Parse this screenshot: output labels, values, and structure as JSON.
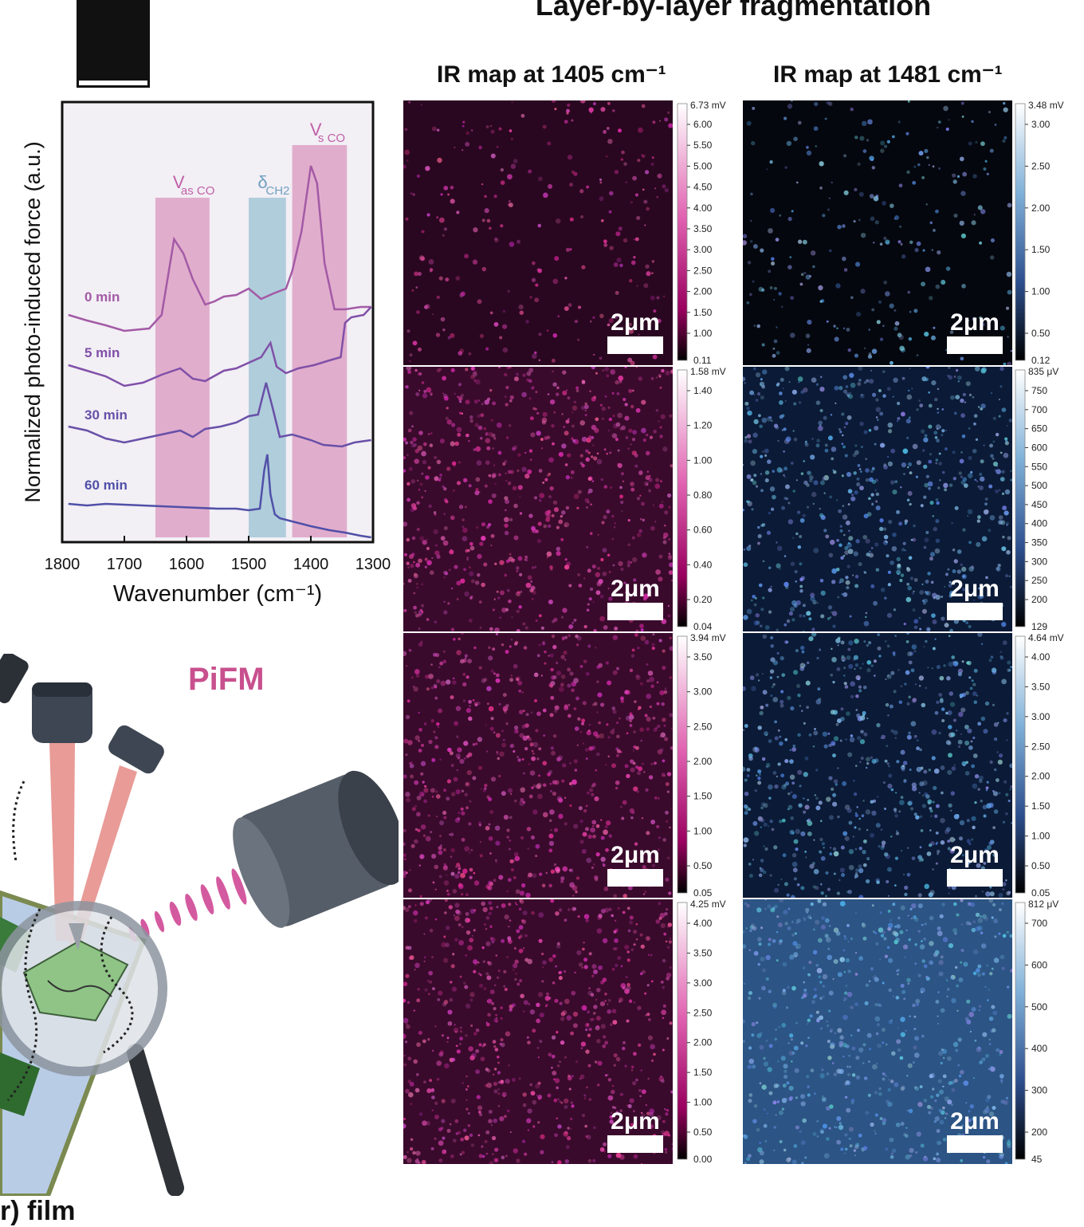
{
  "figure": {
    "title": "Layer-by-layer fragmentation",
    "panel_label": "",
    "pifm_label": "PiFM",
    "film_caption": "r) film",
    "columns": [
      "IR map at 1405 cm⁻¹",
      "IR map at 1481 cm⁻¹"
    ],
    "scale_bar_label": "2μm",
    "colors": {
      "magenta": "#c8508e",
      "blue_band": "#a9c9d8",
      "pink_band": "#dfa5c8",
      "blue_map": "#4a78b8",
      "magenta_map": "#b0106e"
    }
  },
  "chart_data": {
    "type": "line",
    "xlabel": "Wavenumber (cm⁻¹)",
    "ylabel": "Normalized photo-induced force  (a.u.)",
    "xlim": [
      1800,
      1300
    ],
    "x_ticks": [
      "1800",
      "1700",
      "1600",
      "1500",
      "1400",
      "1300"
    ],
    "bands": [
      {
        "label_main": "V",
        "label_sub": "as CO",
        "from": 1650,
        "to": 1563,
        "color": "#dfa5c8"
      },
      {
        "label_main": "δ",
        "label_sub": "CH2",
        "from": 1500,
        "to": 1440,
        "color": "#a9c9d8"
      },
      {
        "label_main": "V",
        "label_sub": "s CO",
        "from": 1430,
        "to": 1342,
        "color": "#dfa5c8"
      }
    ],
    "series": [
      {
        "name": "0 min",
        "color": "#a35aa6",
        "points": [
          [
            1790,
            395
          ],
          [
            1760,
            402
          ],
          [
            1730,
            408
          ],
          [
            1700,
            415
          ],
          [
            1660,
            412
          ],
          [
            1640,
            395
          ],
          [
            1620,
            300
          ],
          [
            1605,
            318
          ],
          [
            1590,
            350
          ],
          [
            1570,
            382
          ],
          [
            1555,
            378
          ],
          [
            1540,
            372
          ],
          [
            1520,
            370
          ],
          [
            1500,
            362
          ],
          [
            1480,
            375
          ],
          [
            1460,
            368
          ],
          [
            1440,
            362
          ],
          [
            1430,
            340
          ],
          [
            1415,
            290
          ],
          [
            1400,
            208
          ],
          [
            1390,
            230
          ],
          [
            1378,
            330
          ],
          [
            1362,
            388
          ],
          [
            1345,
            388
          ],
          [
            1320,
            385
          ],
          [
            1303,
            385
          ]
        ]
      },
      {
        "name": "5 min",
        "color": "#8050a8",
        "points": [
          [
            1790,
            458
          ],
          [
            1760,
            465
          ],
          [
            1730,
            472
          ],
          [
            1700,
            484
          ],
          [
            1670,
            480
          ],
          [
            1640,
            470
          ],
          [
            1610,
            462
          ],
          [
            1590,
            475
          ],
          [
            1570,
            478
          ],
          [
            1540,
            465
          ],
          [
            1520,
            462
          ],
          [
            1500,
            455
          ],
          [
            1480,
            448
          ],
          [
            1465,
            430
          ],
          [
            1455,
            460
          ],
          [
            1440,
            468
          ],
          [
            1420,
            462
          ],
          [
            1395,
            458
          ],
          [
            1370,
            452
          ],
          [
            1352,
            448
          ],
          [
            1345,
            405
          ],
          [
            1335,
            398
          ],
          [
            1315,
            395
          ],
          [
            1303,
            385
          ]
        ]
      },
      {
        "name": "30 min",
        "color": "#6850a8",
        "points": [
          [
            1790,
            535
          ],
          [
            1760,
            540
          ],
          [
            1730,
            550
          ],
          [
            1700,
            555
          ],
          [
            1670,
            550
          ],
          [
            1640,
            545
          ],
          [
            1610,
            540
          ],
          [
            1590,
            548
          ],
          [
            1570,
            538
          ],
          [
            1545,
            535
          ],
          [
            1520,
            530
          ],
          [
            1500,
            522
          ],
          [
            1485,
            520
          ],
          [
            1472,
            480
          ],
          [
            1462,
            510
          ],
          [
            1450,
            548
          ],
          [
            1430,
            545
          ],
          [
            1400,
            552
          ],
          [
            1380,
            558
          ],
          [
            1350,
            560
          ],
          [
            1330,
            555
          ],
          [
            1303,
            552
          ]
        ]
      },
      {
        "name": "60 min",
        "color": "#5050a8",
        "points": [
          [
            1790,
            632
          ],
          [
            1760,
            634
          ],
          [
            1730,
            632
          ],
          [
            1700,
            633
          ],
          [
            1670,
            634
          ],
          [
            1640,
            635
          ],
          [
            1610,
            636
          ],
          [
            1580,
            637
          ],
          [
            1550,
            638
          ],
          [
            1520,
            638
          ],
          [
            1500,
            640
          ],
          [
            1482,
            638
          ],
          [
            1475,
            590
          ],
          [
            1470,
            570
          ],
          [
            1465,
            620
          ],
          [
            1458,
            645
          ],
          [
            1450,
            650
          ],
          [
            1430,
            654
          ],
          [
            1400,
            660
          ],
          [
            1370,
            665
          ],
          [
            1345,
            668
          ],
          [
            1320,
            672
          ],
          [
            1303,
            674
          ]
        ]
      }
    ]
  },
  "colorbars_left": [
    {
      "top_label": "6.73 mV",
      "ticks": [
        "6.00",
        "5.50",
        "5.00",
        "4.50",
        "4.00",
        "3.50",
        "3.00",
        "2.50",
        "2.00",
        "1.50",
        "1.00"
      ],
      "bottom_label": "0.11"
    },
    {
      "top_label": "1.58 mV",
      "ticks": [
        "1.40",
        "1.20",
        "1.00",
        "0.80",
        "0.60",
        "0.40",
        "0.20"
      ],
      "bottom_label": "0.04"
    },
    {
      "top_label": "3.94 mV",
      "ticks": [
        "3.50",
        "3.00",
        "2.50",
        "2.00",
        "1.50",
        "1.00",
        "0.50"
      ],
      "bottom_label": "0.05"
    },
    {
      "top_label": "4.25 mV",
      "ticks": [
        "4.00",
        "3.50",
        "3.00",
        "2.50",
        "2.00",
        "1.50",
        "1.00",
        "0.50"
      ],
      "bottom_label": "0.00"
    }
  ],
  "colorbars_right": [
    {
      "top_label": "3.48 mV",
      "ticks": [
        "3.00",
        "2.50",
        "2.00",
        "1.50",
        "1.00",
        "0.50"
      ],
      "bottom_label": "0.12"
    },
    {
      "top_label": "835 μV",
      "ticks": [
        "750",
        "700",
        "650",
        "600",
        "550",
        "500",
        "450",
        "400",
        "350",
        "300",
        "250",
        "200"
      ],
      "bottom_label": "129"
    },
    {
      "top_label": "4.64 mV",
      "ticks": [
        "4.00",
        "3.50",
        "3.00",
        "2.50",
        "2.00",
        "1.50",
        "1.00",
        "0.50"
      ],
      "bottom_label": "0.05"
    },
    {
      "top_label": "812 μV",
      "ticks": [
        "700",
        "600",
        "500",
        "400",
        "300",
        "200"
      ],
      "bottom_label": "45"
    }
  ]
}
